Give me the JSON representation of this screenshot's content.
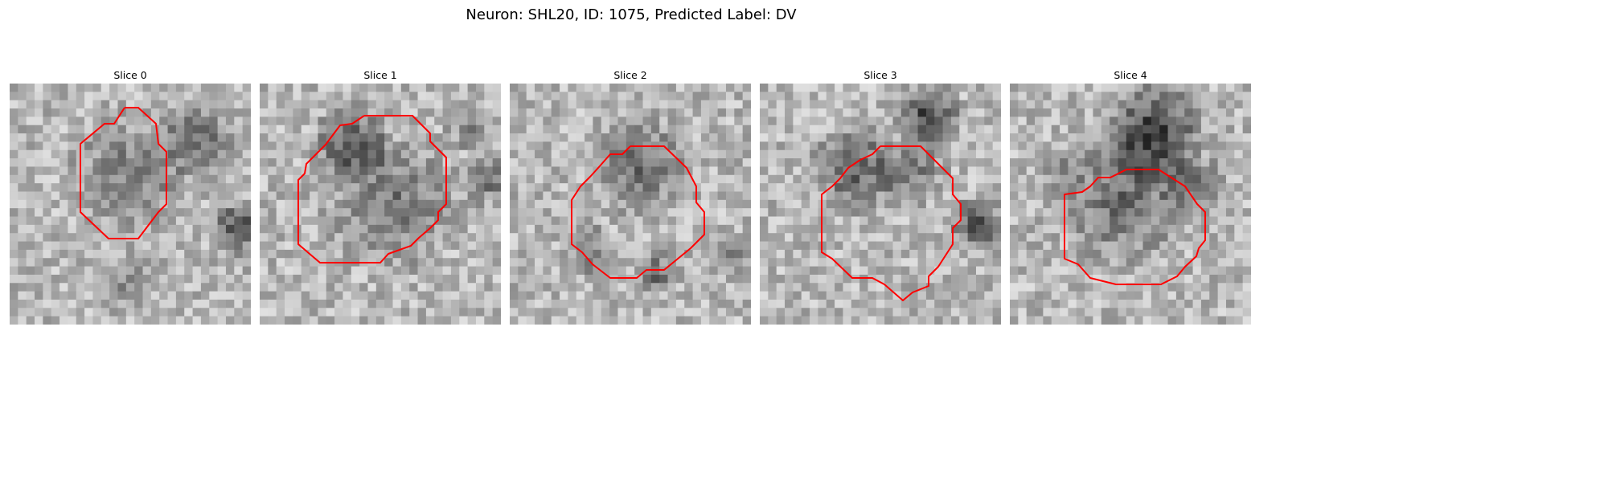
{
  "figure": {
    "title": "Neuron: SHL20, ID: 1075, Predicted Label: DV"
  },
  "colors": {
    "contour": "#ff0000"
  },
  "slices": [
    {
      "title": "Slice 0"
    },
    {
      "title": "Slice 1"
    },
    {
      "title": "Slice 2"
    },
    {
      "title": "Slice 3"
    },
    {
      "title": "Slice 4"
    }
  ]
}
